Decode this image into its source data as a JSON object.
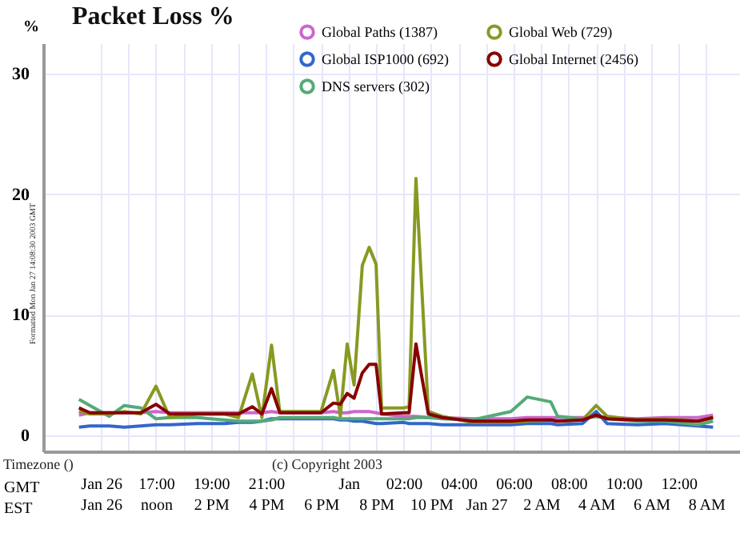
{
  "chart_data": {
    "type": "line",
    "title": "Packet Loss %",
    "ylabel": "%",
    "xlabel": "GMT",
    "x2label": "EST",
    "x": [
      "2003-01-26T14:12",
      "2003-01-26T14:36",
      "2003-01-26T15:18",
      "2003-01-26T15:51",
      "2003-01-26T16:27",
      "2003-01-26T17:00",
      "2003-01-26T17:30",
      "2003-01-26T18:30",
      "2003-01-26T19:30",
      "2003-01-26T20:00",
      "2003-01-26T20:30",
      "2003-01-26T20:51",
      "2003-01-26T21:12",
      "2003-01-26T21:30",
      "2003-01-26T22:18",
      "2003-01-26T23:00",
      "2003-01-26T23:27",
      "2003-01-26T23:42",
      "2003-01-26T23:57",
      "2003-01-27T00:12",
      "2003-01-27T00:30",
      "2003-01-27T00:45",
      "2003-01-27T01:00",
      "2003-01-27T01:12",
      "2003-01-27T02:00",
      "2003-01-27T02:12",
      "2003-01-27T02:27",
      "2003-01-27T02:54",
      "2003-01-27T03:24",
      "2003-01-27T04:30",
      "2003-01-27T05:54",
      "2003-01-27T06:30",
      "2003-01-27T07:21",
      "2003-01-27T07:36",
      "2003-01-27T08:30",
      "2003-01-27T09:00",
      "2003-01-27T09:24",
      "2003-01-27T10:30",
      "2003-01-27T11:30",
      "2003-01-27T12:42",
      "2003-01-27T13:15"
    ],
    "series": [
      {
        "name": "Global Paths (1387)",
        "color": "#cc66cc",
        "values": [
          1.7,
          1.9,
          1.9,
          1.9,
          1.9,
          2.0,
          1.9,
          1.9,
          1.9,
          1.9,
          1.9,
          1.9,
          2.0,
          1.9,
          1.9,
          1.9,
          2.0,
          1.9,
          1.9,
          2.0,
          2.0,
          2.0,
          1.9,
          1.8,
          1.6,
          1.6,
          1.6,
          1.5,
          1.5,
          1.4,
          1.4,
          1.5,
          1.5,
          1.5,
          1.5,
          1.6,
          1.5,
          1.4,
          1.5,
          1.5,
          1.7
        ]
      },
      {
        "name": "Global ISP1000 (692)",
        "color": "#3366cc",
        "values": [
          0.7,
          0.8,
          0.8,
          0.7,
          0.8,
          0.9,
          0.9,
          1.0,
          1.0,
          1.1,
          1.1,
          1.2,
          1.4,
          1.4,
          1.4,
          1.4,
          1.4,
          1.3,
          1.3,
          1.2,
          1.2,
          1.1,
          1.0,
          1.0,
          1.1,
          1.0,
          1.0,
          1.0,
          0.9,
          0.9,
          0.9,
          1.0,
          1.0,
          0.9,
          1.0,
          2.0,
          1.0,
          0.9,
          1.0,
          0.8,
          0.7
        ]
      },
      {
        "name": "DNS servers (302)",
        "color": "#55aa77",
        "values": [
          3.0,
          2.5,
          1.6,
          2.5,
          2.3,
          1.4,
          1.5,
          1.5,
          1.3,
          1.2,
          1.2,
          1.2,
          1.3,
          1.5,
          1.5,
          1.5,
          1.5,
          1.4,
          1.4,
          1.4,
          1.4,
          1.4,
          1.4,
          1.4,
          1.4,
          1.4,
          1.5,
          1.5,
          1.4,
          1.3,
          2.0,
          3.2,
          2.8,
          1.6,
          1.4,
          1.6,
          1.4,
          1.2,
          1.2,
          0.9,
          1.2
        ]
      },
      {
        "name": "Global Web (729)",
        "color": "#889922",
        "values": [
          2.0,
          1.8,
          1.8,
          2.0,
          1.8,
          4.1,
          1.5,
          1.8,
          1.8,
          1.5,
          5.1,
          1.5,
          7.5,
          2.0,
          2.0,
          2.0,
          5.4,
          1.6,
          7.6,
          4.2,
          14.1,
          15.6,
          14.2,
          2.3,
          2.3,
          2.4,
          21.3,
          2.0,
          1.6,
          1.1,
          1.1,
          1.2,
          1.3,
          1.2,
          1.3,
          2.5,
          1.6,
          1.3,
          1.4,
          1.2,
          1.5
        ]
      },
      {
        "name": "Global Internet (2456)",
        "color": "#880000",
        "values": [
          2.3,
          1.9,
          1.9,
          1.9,
          1.9,
          2.6,
          1.8,
          1.8,
          1.8,
          1.8,
          2.4,
          1.8,
          3.9,
          1.9,
          1.9,
          1.9,
          2.7,
          2.6,
          3.5,
          3.1,
          5.2,
          5.9,
          5.9,
          1.8,
          1.9,
          1.9,
          7.6,
          1.8,
          1.5,
          1.2,
          1.2,
          1.3,
          1.3,
          1.2,
          1.3,
          1.7,
          1.4,
          1.3,
          1.3,
          1.2,
          1.5
        ]
      }
    ],
    "xlim": [
      "2003-01-26T12:54",
      "2003-01-27T14:12"
    ],
    "xticks": [
      {
        "value": "2003-01-26T15:00",
        "label": "Jan 26"
      },
      {
        "value": "2003-01-26T16:00",
        "label": null
      },
      {
        "value": "2003-01-26T17:00",
        "label": "17:00"
      },
      {
        "value": "2003-01-26T18:00",
        "label": null
      },
      {
        "value": "2003-01-26T19:00",
        "label": "19:00"
      },
      {
        "value": "2003-01-26T20:00",
        "label": null
      },
      {
        "value": "2003-01-26T21:00",
        "label": "21:00"
      },
      {
        "value": "2003-01-26T22:00",
        "label": null
      },
      {
        "value": "2003-01-26T23:00",
        "label": null
      },
      {
        "value": "2003-01-27T00:00",
        "label": "Jan"
      },
      {
        "value": "2003-01-27T01:00",
        "label": null
      },
      {
        "value": "2003-01-27T02:00",
        "label": "02:00"
      },
      {
        "value": "2003-01-27T03:00",
        "label": null
      },
      {
        "value": "2003-01-27T04:00",
        "label": "04:00"
      },
      {
        "value": "2003-01-27T05:00",
        "label": null
      },
      {
        "value": "2003-01-27T06:00",
        "label": "06:00"
      },
      {
        "value": "2003-01-27T07:00",
        "label": null
      },
      {
        "value": "2003-01-27T08:00",
        "label": "08:00"
      },
      {
        "value": "2003-01-27T09:00",
        "label": null
      },
      {
        "value": "2003-01-27T10:00",
        "label": "10:00"
      },
      {
        "value": "2003-01-27T11:00",
        "label": null
      },
      {
        "value": "2003-01-27T12:00",
        "label": "12:00"
      },
      {
        "value": "2003-01-27T13:00",
        "label": null
      }
    ],
    "x2lim": [
      "2003-01-26T07:54",
      "2003-01-27T09:12"
    ],
    "x2ticks": [
      {
        "value": "2003-01-26T10:00",
        "label": "Jan 26"
      },
      {
        "value": "2003-01-26T12:00",
        "label": "noon"
      },
      {
        "value": "2003-01-26T14:00",
        "label": "2 PM"
      },
      {
        "value": "2003-01-26T16:00",
        "label": "4 PM"
      },
      {
        "value": "2003-01-26T18:00",
        "label": "6 PM"
      },
      {
        "value": "2003-01-26T20:00",
        "label": "8 PM"
      },
      {
        "value": "2003-01-26T22:00",
        "label": "10 PM"
      },
      {
        "value": "2003-01-27T00:00",
        "label": "Jan 27"
      },
      {
        "value": "2003-01-27T02:00",
        "label": "2 AM"
      },
      {
        "value": "2003-01-27T04:00",
        "label": "4 AM"
      },
      {
        "value": "2003-01-27T06:00",
        "label": "6 AM"
      },
      {
        "value": "2003-01-27T08:00",
        "label": "8 AM"
      }
    ],
    "ylim": [
      -1.3,
      32.5
    ],
    "yticks": [
      0,
      10,
      20,
      30
    ],
    "grid": true,
    "legend": "top",
    "marker": "none",
    "line_style": "solid",
    "annotations": [
      "Timezone ()",
      "(c) Copyright 2003",
      "Formatted Mon Jan 27 14:08:30 2003 GMT"
    ]
  }
}
